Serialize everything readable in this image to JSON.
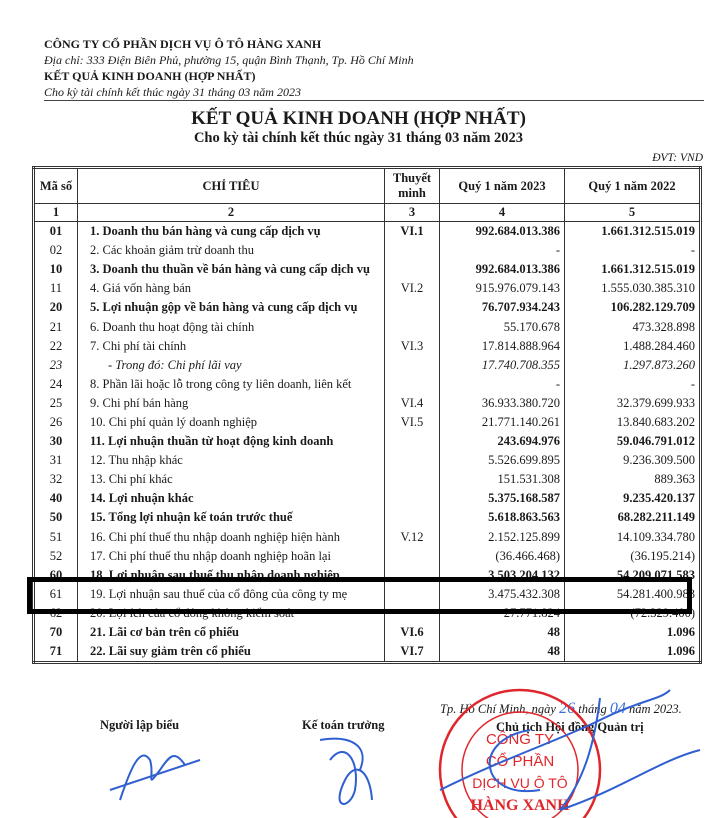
{
  "header": {
    "company": "CÔNG TY CỔ PHẦN DỊCH VỤ Ô TÔ HÀNG XANH",
    "address": "Địa chỉ: 333 Điện Biên Phủ, phường 15, quận Bình Thạnh, Tp. Hồ Chí Minh",
    "report": "KẾT QUẢ KINH DOANH (HỢP NHẤT)",
    "period": "Cho kỳ tài chính kết thúc ngày 31 tháng 03 năm 2023"
  },
  "title": "KẾT QUẢ KINH DOANH (HỢP NHẤT)",
  "subtitle": "Cho kỳ tài chính kết thúc ngày 31 tháng 03 năm 2023",
  "unit": "ĐVT: VND",
  "table": {
    "columns": [
      "Mã số",
      "CHỈ TIÊU",
      "Thuyết minh",
      "Quý 1 năm 2023",
      "Quý 1 năm 2022"
    ],
    "column_numbers": [
      "1",
      "2",
      "3",
      "4",
      "5"
    ],
    "rows": [
      {
        "code": "01",
        "item": "1.  Doanh thu bán hàng và cung cấp dịch vụ",
        "note": "VI.1",
        "q1_2023": "992.684.013.386",
        "q1_2022": "1.661.312.515.019",
        "style": "bold"
      },
      {
        "code": "02",
        "item": "2.  Các khoản giảm trừ doanh thu",
        "note": "",
        "q1_2023": "-",
        "q1_2022": "-",
        "style": ""
      },
      {
        "code": "10",
        "item": "3.  Doanh thu thuần về bán hàng và cung cấp dịch vụ",
        "note": "",
        "q1_2023": "992.684.013.386",
        "q1_2022": "1.661.312.515.019",
        "style": "bold"
      },
      {
        "code": "11",
        "item": "4.  Giá vốn hàng bán",
        "note": "VI.2",
        "q1_2023": "915.976.079.143",
        "q1_2022": "1.555.030.385.310",
        "style": ""
      },
      {
        "code": "20",
        "item": "5.  Lợi nhuận gộp về bán hàng và cung cấp dịch vụ",
        "note": "",
        "q1_2023": "76.707.934.243",
        "q1_2022": "106.282.129.709",
        "style": "bold"
      },
      {
        "code": "21",
        "item": "6.  Doanh thu hoạt động tài chính",
        "note": "",
        "q1_2023": "55.170.678",
        "q1_2022": "473.328.898",
        "style": ""
      },
      {
        "code": "22",
        "item": "7.  Chi phí tài chính",
        "note": "VI.3",
        "q1_2023": "17.814.888.964",
        "q1_2022": "1.488.284.460",
        "style": ""
      },
      {
        "code": "23",
        "item": "- Trong đó: Chi phí lãi vay",
        "note": "",
        "q1_2023": "17.740.708.355",
        "q1_2022": "1.297.873.260",
        "style": "ital"
      },
      {
        "code": "24",
        "item": "8.   Phần lãi hoặc lỗ trong công ty liên doanh, liên kết",
        "note": "",
        "q1_2023": "-",
        "q1_2022": "-",
        "style": ""
      },
      {
        "code": "25",
        "item": "9. Chi phí bán hàng",
        "note": "VI.4",
        "q1_2023": "36.933.380.720",
        "q1_2022": "32.379.699.933",
        "style": ""
      },
      {
        "code": "26",
        "item": "10. Chi phí quản lý doanh nghiệp",
        "note": "VI.5",
        "q1_2023": "21.771.140.261",
        "q1_2022": "13.840.683.202",
        "style": ""
      },
      {
        "code": "30",
        "item": "11. Lợi nhuận thuần từ hoạt động kinh doanh",
        "note": "",
        "q1_2023": "243.694.976",
        "q1_2022": "59.046.791.012",
        "style": "bold"
      },
      {
        "code": "31",
        "item": "12. Thu nhập khác",
        "note": "",
        "q1_2023": "5.526.699.895",
        "q1_2022": "9.236.309.500",
        "style": ""
      },
      {
        "code": "32",
        "item": "13. Chi phí khác",
        "note": "",
        "q1_2023": "151.531.308",
        "q1_2022": "889.363",
        "style": ""
      },
      {
        "code": "40",
        "item": "14. Lợi nhuận khác",
        "note": "",
        "q1_2023": "5.375.168.587",
        "q1_2022": "9.235.420.137",
        "style": "bold"
      },
      {
        "code": "50",
        "item": "15. Tổng lợi nhuận kế toán trước thuế",
        "note": "",
        "q1_2023": "5.618.863.563",
        "q1_2022": "68.282.211.149",
        "style": "bold"
      },
      {
        "code": "51",
        "item": "16. Chi phí thuế thu nhập doanh nghiệp hiện hành",
        "note": "V.12",
        "q1_2023": "2.152.125.899",
        "q1_2022": "14.109.334.780",
        "style": ""
      },
      {
        "code": "52",
        "item": "17. Chi phí thuế thu nhập doanh nghiệp hoãn lại",
        "note": "",
        "q1_2023": "(36.466.468)",
        "q1_2022": "(36.195.214)",
        "style": ""
      },
      {
        "code": "60",
        "item": "18. Lợi nhuận sau thuế thu nhập doanh nghiệp",
        "note": "",
        "q1_2023": "3.503.204.132",
        "q1_2022": "54.209.071.583",
        "style": "bold"
      },
      {
        "code": "61",
        "item": "19. Lợi nhuận sau thuế của cổ đông của công ty mẹ",
        "note": "",
        "q1_2023": "3.475.432.308",
        "q1_2022": "54.281.400.983",
        "style": ""
      },
      {
        "code": "62",
        "item": "20. Lợi ích của cổ đông không kiểm soát",
        "note": "",
        "q1_2023": "27.771.824",
        "q1_2022": "(72.329.400)",
        "style": ""
      },
      {
        "code": "70",
        "item": "21. Lãi cơ bản trên cổ phiếu",
        "note": "VI.6",
        "q1_2023": "48",
        "q1_2022": "1.096",
        "style": "bold"
      },
      {
        "code": "71",
        "item": "22. Lãi suy giảm trên cổ phiếu",
        "note": "VI.7",
        "q1_2023": "48",
        "q1_2022": "1.096",
        "style": "bold"
      }
    ]
  },
  "footer": {
    "place_prefix": "Tp. Hồ Chí Minh, ngày",
    "day": "26",
    "month_label": "tháng",
    "month": "04",
    "year_suffix": "năm 2023.",
    "preparer": "Người lập biểu",
    "chief_accountant": "Kế toán trưởng",
    "chairman": "Chủ tịch Hội đồng Quản trị"
  },
  "stamp": {
    "ring_text": "M.S.D.N: 0302000120 - T.P. HỒ CHÍ MINH - Q. BÌNH THẠNH",
    "lines": [
      "CÔNG TY",
      "CỔ PHẦN",
      "DỊCH VỤ Ô TÔ",
      "HÀNG XANH"
    ],
    "color": "#e0262b"
  },
  "highlight_color": "#000000",
  "signature_color": "#2f5fd0"
}
